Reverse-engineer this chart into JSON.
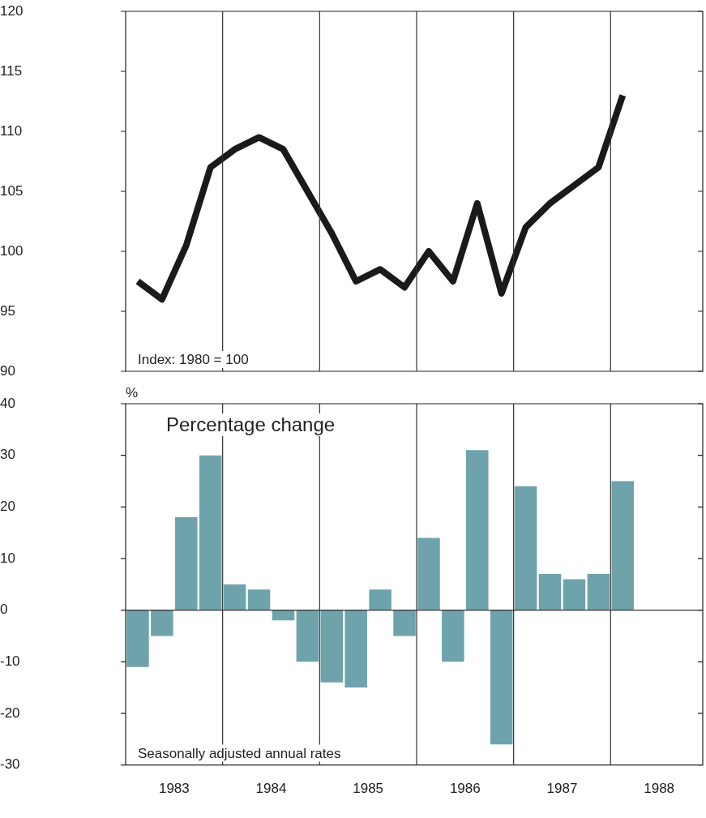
{
  "chart_data": [
    {
      "type": "line",
      "tick_labels": "y",
      "annotations": [
        "Index: 1980 = 100"
      ],
      "x": [
        1983.125,
        1983.375,
        1983.625,
        1983.875,
        1984.125,
        1984.375,
        1984.625,
        1984.875,
        1985.125,
        1985.375,
        1985.625,
        1985.875,
        1986.125,
        1986.375,
        1986.625,
        1986.875,
        1987.125,
        1987.375,
        1987.625,
        1987.875,
        1988.125
      ],
      "series": [
        {
          "color": "#1a1a1a",
          "values": [
            97.5,
            96,
            100.5,
            107,
            108.5,
            109.5,
            108.5,
            105,
            101.5,
            97.5,
            98.5,
            97,
            100,
            97.5,
            104,
            96.5,
            102,
            104,
            105.5,
            107,
            113
          ]
        }
      ],
      "xlim": [
        1983,
        1988.95
      ],
      "ylim": [
        90,
        120
      ],
      "yticks": [
        90,
        95,
        100,
        105,
        110,
        115,
        120
      ],
      "ref_lines": [
        {
          "axis": "x",
          "value": 1984,
          "color": "#333333"
        },
        {
          "axis": "x",
          "value": 1985,
          "color": "#333333"
        },
        {
          "axis": "x",
          "value": 1986,
          "color": "#333333"
        },
        {
          "axis": "x",
          "value": 1987,
          "color": "#333333"
        },
        {
          "axis": "x",
          "value": 1988,
          "color": "#333333"
        }
      ],
      "marker": "none",
      "line_style": "solid"
    },
    {
      "type": "bar",
      "ylabel": "%",
      "annotations": [
        "Percentage change",
        "Seasonally adjusted annual rates"
      ],
      "x": [
        1983.125,
        1983.375,
        1983.625,
        1983.875,
        1984.125,
        1984.375,
        1984.625,
        1984.875,
        1985.125,
        1985.375,
        1985.625,
        1985.875,
        1986.125,
        1986.375,
        1986.625,
        1986.875,
        1987.125,
        1987.375,
        1987.625,
        1987.875,
        1988.125
      ],
      "series": [
        {
          "color": "#6fa3ab",
          "values": [
            -11,
            -5,
            18,
            30,
            5,
            4,
            -2,
            -10,
            -14,
            -15,
            4,
            -5,
            14,
            -10,
            31,
            -26,
            24,
            7,
            6,
            7,
            25
          ]
        }
      ],
      "xlim": [
        1983,
        1988.95
      ],
      "xticks": [
        {
          "value": 1983.5,
          "label": "1983"
        },
        {
          "value": 1984.5,
          "label": "1984"
        },
        {
          "value": 1985.5,
          "label": "1985"
        },
        {
          "value": 1986.5,
          "label": "1986"
        },
        {
          "value": 1987.5,
          "label": "1987"
        },
        {
          "value": 1988.5,
          "label": "1988"
        }
      ],
      "ylim": [
        -30,
        40
      ],
      "yticks": [
        -30,
        -20,
        -10,
        0,
        10,
        20,
        30,
        40
      ],
      "ref_lines": [
        {
          "axis": "y",
          "value": 0,
          "color": "#333333"
        },
        {
          "axis": "x",
          "value": 1984,
          "color": "#333333"
        },
        {
          "axis": "x",
          "value": 1985,
          "color": "#333333"
        },
        {
          "axis": "x",
          "value": 1986,
          "color": "#333333"
        },
        {
          "axis": "x",
          "value": 1987,
          "color": "#333333"
        },
        {
          "axis": "x",
          "value": 1988,
          "color": "#333333"
        }
      ]
    }
  ]
}
